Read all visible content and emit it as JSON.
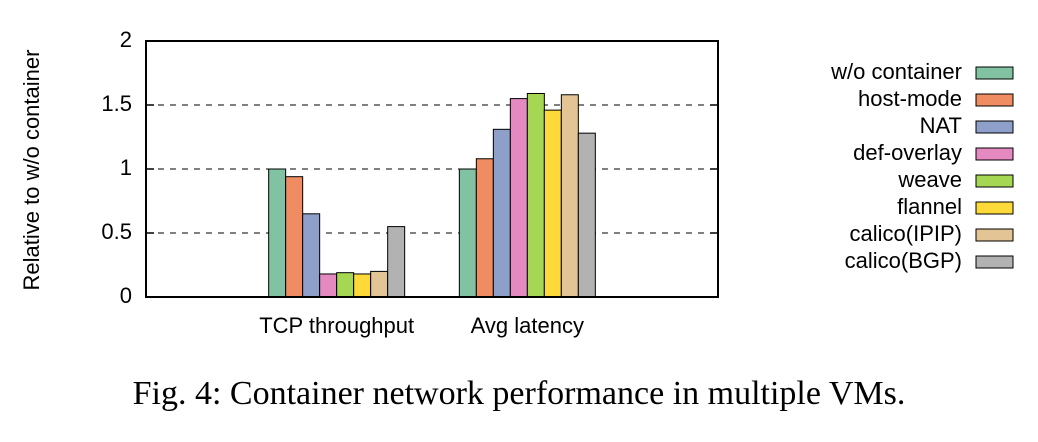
{
  "chart_data": {
    "type": "bar",
    "y_label": "Relative to w/o container",
    "caption": "Fig. 4: Container network performance in multiple VMs.",
    "categories": [
      "TCP throughput",
      "Avg latency"
    ],
    "series": [
      {
        "name": "w/o container",
        "color": "#80c2a1",
        "values": [
          1.0,
          1.0
        ]
      },
      {
        "name": "host-mode",
        "color": "#ef8c62",
        "values": [
          0.94,
          1.08
        ]
      },
      {
        "name": "NAT",
        "color": "#8ea0c9",
        "values": [
          0.65,
          1.31
        ]
      },
      {
        "name": "def-overlay",
        "color": "#e48ac1",
        "values": [
          0.18,
          1.55
        ]
      },
      {
        "name": "weave",
        "color": "#a6d753",
        "values": [
          0.19,
          1.59
        ]
      },
      {
        "name": "flannel",
        "color": "#fdd93a",
        "values": [
          0.18,
          1.46
        ]
      },
      {
        "name": "calico(IPIP)",
        "color": "#e3c494",
        "values": [
          0.2,
          1.58
        ]
      },
      {
        "name": "calico(BGP)",
        "color": "#b2b2b2",
        "values": [
          0.55,
          1.28
        ]
      }
    ],
    "ylim": [
      0,
      2
    ],
    "yticks": [
      0,
      0.5,
      1,
      1.5,
      2
    ],
    "grid": true,
    "legend": "right"
  }
}
